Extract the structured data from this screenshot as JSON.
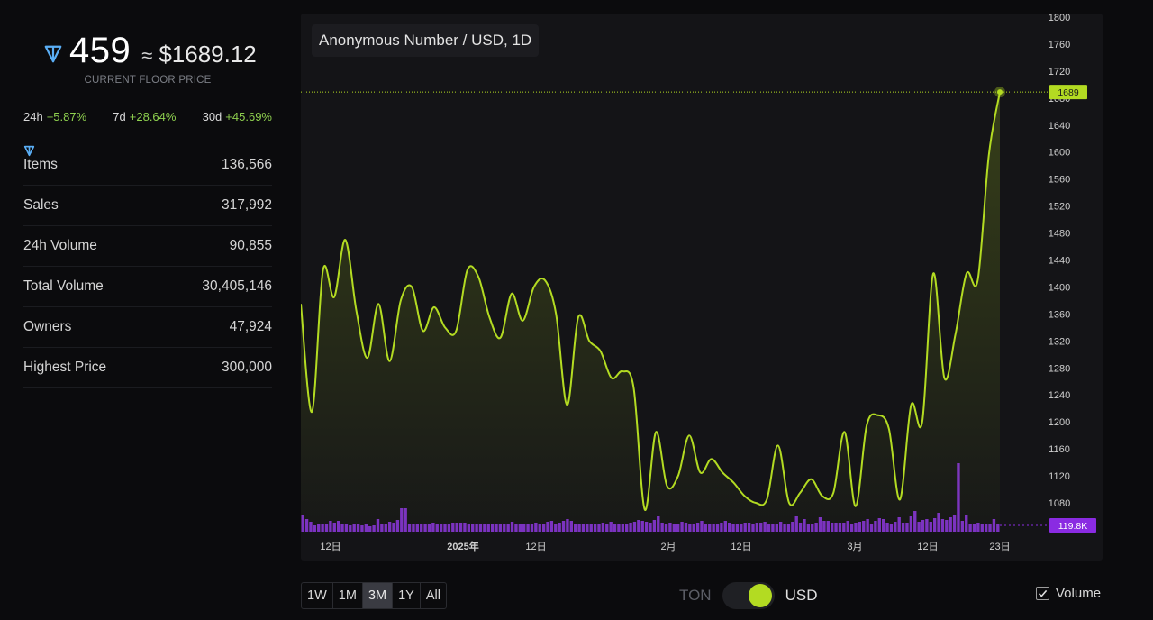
{
  "floor": {
    "price_ton": "459",
    "approx": "≈",
    "price_usd": "$1689.12",
    "label": "CURRENT FLOOR PRICE"
  },
  "changes": [
    {
      "period": "24h",
      "value": "+5.87%"
    },
    {
      "period": "7d",
      "value": "+28.64%"
    },
    {
      "period": "30d",
      "value": "+45.69%"
    }
  ],
  "stats": [
    {
      "label": "Items",
      "value": "136,566",
      "ton": false
    },
    {
      "label": "Sales",
      "value": "317,992",
      "ton": false
    },
    {
      "label": "24h Volume",
      "value": "90,855",
      "ton": true
    },
    {
      "label": "Total Volume",
      "value": "30,405,146",
      "ton": true
    },
    {
      "label": "Owners",
      "value": "47,924",
      "ton": false
    },
    {
      "label": "Highest Price",
      "value": "300,000",
      "ton": false
    }
  ],
  "colors": {
    "accent": "#b3db22",
    "volume": "#7a2fc4",
    "volume_tag": "#8a2be2",
    "positive": "#8fd14f",
    "ton_icon": "#5aaef5"
  },
  "icons": {
    "ton": "ton-diamond-icon",
    "check": "checkmark-icon"
  },
  "chart_data": {
    "type": "line",
    "title": "Anonymous Number / USD, 1D",
    "ylim": [
      1060,
      1800
    ],
    "y_ticks": [
      1080,
      1120,
      1160,
      1200,
      1240,
      1280,
      1320,
      1360,
      1400,
      1440,
      1480,
      1520,
      1560,
      1600,
      1640,
      1680,
      1720,
      1760,
      1800
    ],
    "x_tick_labels": [
      {
        "label": "12日",
        "bold": false
      },
      {
        "label": "2025年",
        "bold": true
      },
      {
        "label": "12日",
        "bold": false
      },
      {
        "label": "2月",
        "bold": false
      },
      {
        "label": "12日",
        "bold": false
      },
      {
        "label": "3月",
        "bold": false
      },
      {
        "label": "12日",
        "bold": false
      },
      {
        "label": "23日",
        "bold": false
      }
    ],
    "series": [
      {
        "values": [
          1375,
          1215,
          1425,
          1385,
          1470,
          1365,
          1295,
          1375,
          1290,
          1380,
          1400,
          1335,
          1370,
          1340,
          1335,
          1425,
          1415,
          1355,
          1325,
          1390,
          1350,
          1400,
          1410,
          1360,
          1225,
          1355,
          1320,
          1305,
          1265,
          1275,
          1250,
          1070,
          1185,
          1105,
          1120,
          1180,
          1125,
          1145,
          1125,
          1110,
          1090,
          1080,
          1085,
          1165,
          1080,
          1095,
          1115,
          1090,
          1095,
          1185,
          1075,
          1195,
          1210,
          1190,
          1085,
          1225,
          1200,
          1420,
          1265,
          1330,
          1420,
          1410,
          1595,
          1689
        ]
      }
    ],
    "volume": {
      "name": "Volume",
      "values": [
        18,
        14,
        11,
        7,
        8,
        9,
        8,
        12,
        10,
        12,
        8,
        9,
        7,
        9,
        8,
        7,
        8,
        6,
        7,
        14,
        9,
        9,
        11,
        10,
        13,
        26,
        26,
        9,
        8,
        9,
        8,
        8,
        9,
        10,
        8,
        9,
        9,
        9,
        10,
        10,
        10,
        10,
        9,
        9,
        9,
        9,
        9,
        9,
        9,
        8,
        9,
        9,
        9,
        11,
        9,
        9,
        9,
        9,
        9,
        10,
        9,
        9,
        11,
        12,
        9,
        10,
        12,
        14,
        12,
        9,
        9,
        9,
        8,
        9,
        8,
        9,
        10,
        9,
        11,
        9,
        9,
        9,
        9,
        10,
        11,
        13,
        12,
        11,
        10,
        13,
        17,
        10,
        9,
        10,
        9,
        9,
        11,
        10,
        8,
        8,
        10,
        12,
        9,
        9,
        9,
        9,
        10,
        12,
        10,
        9,
        8,
        8,
        10,
        10,
        9,
        10,
        10,
        11,
        8,
        8,
        9,
        11,
        9,
        9,
        11,
        17,
        10,
        14,
        8,
        8,
        10,
        16,
        12,
        12,
        10,
        10,
        10,
        10,
        12,
        9,
        10,
        11,
        12,
        14,
        9,
        12,
        15,
        14,
        10,
        8,
        11,
        16,
        10,
        10,
        17,
        23,
        11,
        13,
        14,
        11,
        15,
        21,
        14,
        13,
        16,
        18,
        76,
        12,
        18,
        9,
        9,
        10,
        9,
        9,
        9,
        14,
        9
      ]
    },
    "last_value_label": "1689",
    "last_volume_label": "119.8K",
    "grid": false,
    "legend": "none"
  },
  "controls": {
    "ranges": [
      {
        "label": "1W",
        "active": false
      },
      {
        "label": "1M",
        "active": false
      },
      {
        "label": "3M",
        "active": true
      },
      {
        "label": "1Y",
        "active": false
      },
      {
        "label": "All",
        "active": false
      }
    ],
    "currency_left": "TON",
    "currency_right": "USD",
    "volume_label": "Volume",
    "volume_checked": true
  }
}
